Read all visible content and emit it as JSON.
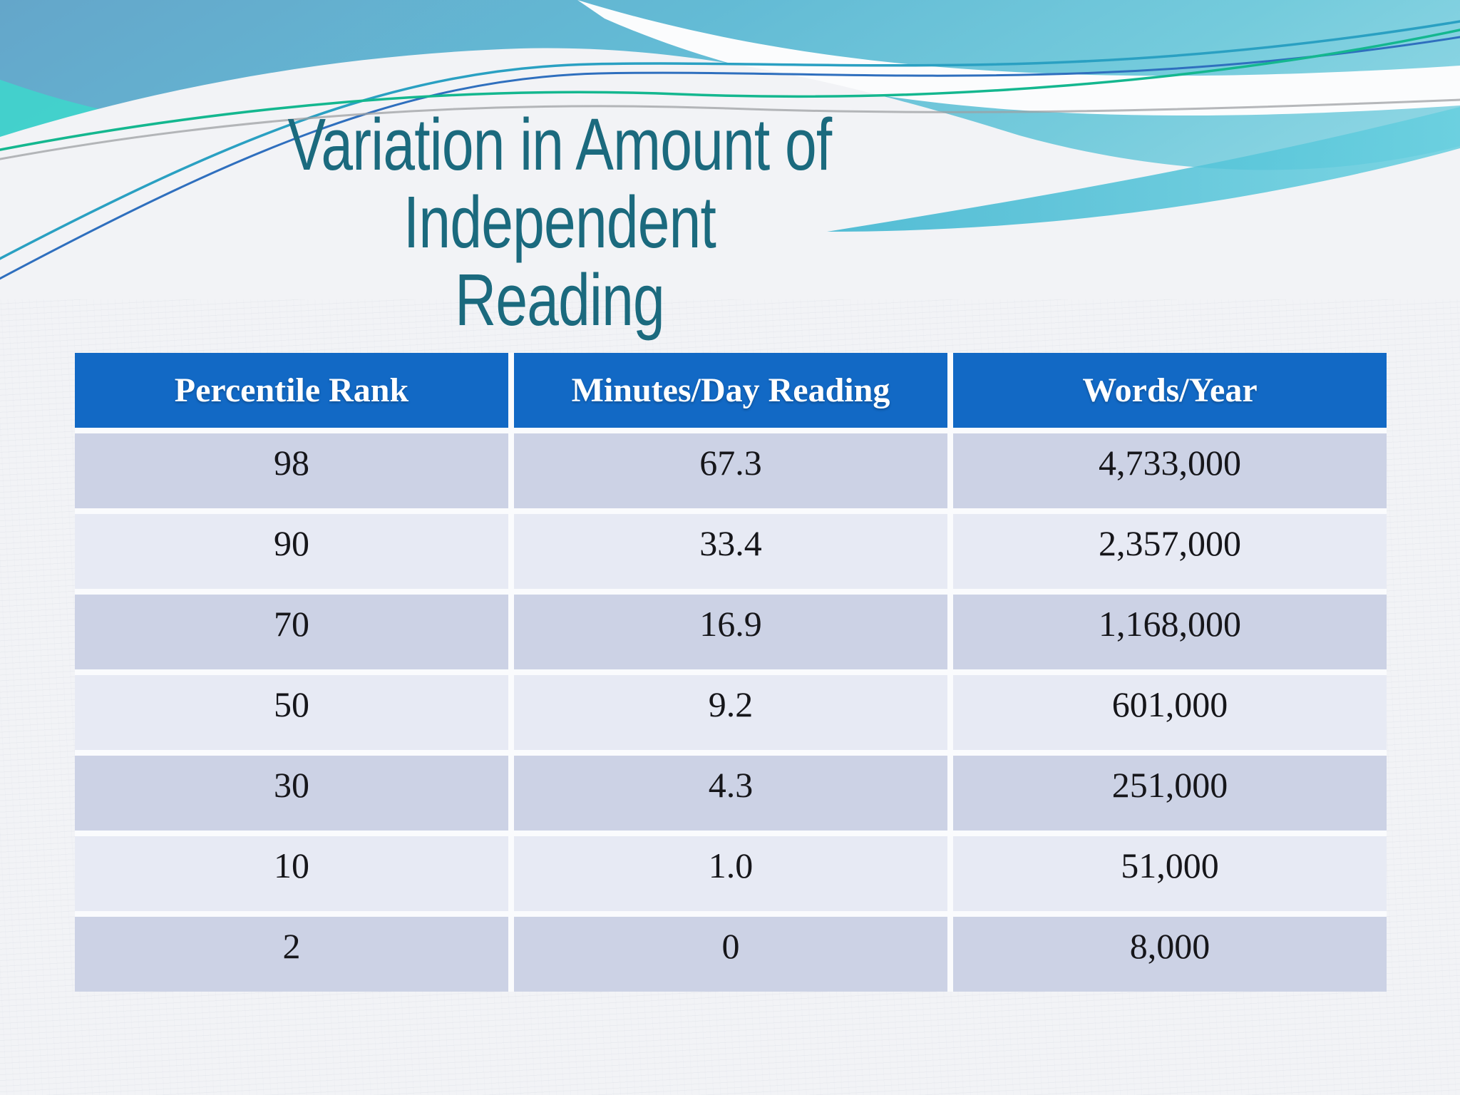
{
  "slide": {
    "title_line1": "Variation in Amount of Independent",
    "title_line2": "Reading"
  },
  "table": {
    "columns": [
      "Percentile Rank",
      "Minutes/Day Reading",
      "Words/Year"
    ],
    "rows": [
      [
        "98",
        "67.3",
        "4,733,000"
      ],
      [
        "90",
        "33.4",
        "2,357,000"
      ],
      [
        "70",
        "16.9",
        "1,168,000"
      ],
      [
        "50",
        "9.2",
        "601,000"
      ],
      [
        "30",
        "4.3",
        "251,000"
      ],
      [
        "10",
        "1.0",
        "51,000"
      ],
      [
        "2",
        "0",
        "8,000"
      ]
    ]
  },
  "chart_data": {
    "type": "table",
    "title": "Variation in Amount of Independent Reading",
    "columns": [
      "Percentile Rank",
      "Minutes/Day Reading",
      "Words/Year"
    ],
    "rows": [
      [
        98,
        67.3,
        4733000
      ],
      [
        90,
        33.4,
        2357000
      ],
      [
        70,
        16.9,
        1168000
      ],
      [
        50,
        9.2,
        601000
      ],
      [
        30,
        4.3,
        251000
      ],
      [
        10,
        1.0,
        51000
      ],
      [
        2,
        0,
        8000
      ]
    ]
  },
  "colors": {
    "header-blue": "#1269C5",
    "row-dark": "#CCD2E5",
    "row-light": "#E7EAF4",
    "gap-white": "#FAFBFD",
    "title-teal": "#1B6A7E",
    "bg": "#F2F3F6",
    "text-dark": "#16161A",
    "wave-teal-line": "#2AA0C2",
    "wave-blue-line": "#2F6FBE",
    "wave-green-line": "#14B78F",
    "wave-gray-line": "#9EA0A3"
  }
}
